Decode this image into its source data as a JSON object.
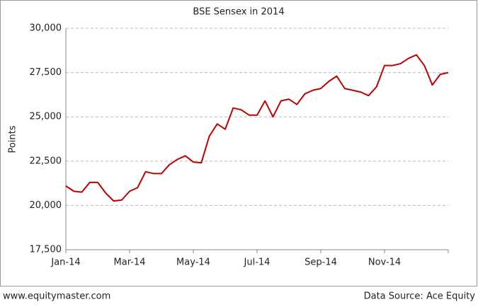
{
  "chart_data": {
    "type": "line",
    "title": "BSE Sensex in 2014",
    "ylabel": "Points",
    "footer_left": "www.equitymaster.com",
    "footer_right": "Data Source: Ace Equity",
    "categories": [
      "Jan-14",
      null,
      null,
      null,
      null,
      null,
      null,
      null,
      "Mar-14",
      null,
      null,
      null,
      null,
      null,
      null,
      null,
      "May-14",
      null,
      null,
      null,
      null,
      null,
      null,
      null,
      "Jul-14",
      null,
      null,
      null,
      null,
      null,
      null,
      null,
      "Sep-14",
      null,
      null,
      null,
      null,
      null,
      null,
      null,
      "Nov-14",
      null,
      null,
      null,
      null,
      null,
      null,
      null,
      null
    ],
    "series": [
      {
        "name": "BSE Sensex",
        "color": "#c00000",
        "values": [
          21100,
          20800,
          20750,
          21300,
          21300,
          20700,
          20250,
          20300,
          20800,
          21000,
          21900,
          21800,
          21800,
          22300,
          22600,
          22800,
          22450,
          22400,
          23900,
          24600,
          24300,
          25500,
          25400,
          25100,
          25100,
          25900,
          25000,
          25900,
          26000,
          25700,
          26300,
          26500,
          26600,
          27000,
          27300,
          26600,
          26500,
          26400,
          26200,
          26700,
          27900,
          27900,
          28000,
          28300,
          28500,
          27900,
          26800,
          27400,
          27500
        ]
      }
    ],
    "ylim": [
      17500,
      30000
    ],
    "yticks": [
      {
        "value": 17500,
        "label": "17,500"
      },
      {
        "value": 20000,
        "label": "20,000"
      },
      {
        "value": 22500,
        "label": "22,500"
      },
      {
        "value": 25000,
        "label": "25,000"
      },
      {
        "value": 27500,
        "label": "27,500"
      },
      {
        "value": 30000,
        "label": "30,000"
      }
    ],
    "grid": true
  }
}
